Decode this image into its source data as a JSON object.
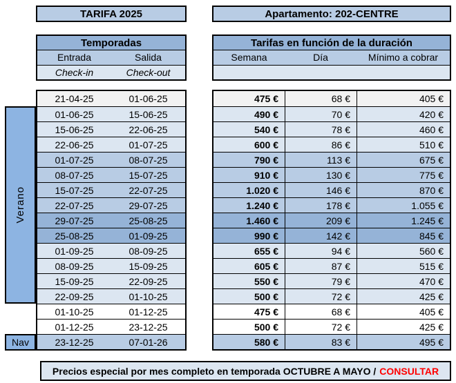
{
  "header": {
    "tarifa_title": "TARIFA 2025",
    "apartment_title": "Apartamento: 202-CENTRE"
  },
  "seasons": {
    "title": "Temporadas",
    "col_entrada": "Entrada",
    "col_salida": "Salida",
    "sub_checkin": "Check-in",
    "sub_checkout": "Check-out",
    "summer_label": "Verano",
    "christmas_label": "Nav"
  },
  "rates": {
    "title": "Tarifas en función de la duración",
    "col_semana": "Semana",
    "col_dia": "Día",
    "col_minimo": "Mínimo a cobrar"
  },
  "rows": [
    {
      "entrada": "21-04-25",
      "salida": "01-06-25",
      "semana": "475 €",
      "dia": "68 €",
      "minimo": "405 €",
      "shade": "gray"
    },
    {
      "entrada": "01-06-25",
      "salida": "15-06-25",
      "semana": "490 €",
      "dia": "70 €",
      "minimo": "420 €",
      "shade": "light"
    },
    {
      "entrada": "15-06-25",
      "salida": "22-06-25",
      "semana": "540 €",
      "dia": "78 €",
      "minimo": "460 €",
      "shade": "light"
    },
    {
      "entrada": "22-06-25",
      "salida": "01-07-25",
      "semana": "600 €",
      "dia": "86 €",
      "minimo": "510 €",
      "shade": "light"
    },
    {
      "entrada": "01-07-25",
      "salida": "08-07-25",
      "semana": "790 €",
      "dia": "113 €",
      "minimo": "675 €",
      "shade": "medium"
    },
    {
      "entrada": "08-07-25",
      "salida": "15-07-25",
      "semana": "910 €",
      "dia": "130 €",
      "minimo": "775 €",
      "shade": "medium"
    },
    {
      "entrada": "15-07-25",
      "salida": "22-07-25",
      "semana": "1.020 €",
      "dia": "146 €",
      "minimo": "870 €",
      "shade": "medium"
    },
    {
      "entrada": "22-07-25",
      "salida": "29-07-25",
      "semana": "1.240 €",
      "dia": "178 €",
      "minimo": "1.055 €",
      "shade": "medium"
    },
    {
      "entrada": "29-07-25",
      "salida": "25-08-25",
      "semana": "1.460 €",
      "dia": "209 €",
      "minimo": "1.245 €",
      "shade": "dark"
    },
    {
      "entrada": "25-08-25",
      "salida": "01-09-25",
      "semana": "990 €",
      "dia": "142 €",
      "minimo": "845 €",
      "shade": "dark"
    },
    {
      "entrada": "01-09-25",
      "salida": "08-09-25",
      "semana": "655 €",
      "dia": "94 €",
      "minimo": "560 €",
      "shade": "light"
    },
    {
      "entrada": "08-09-25",
      "salida": "15-09-25",
      "semana": "605 €",
      "dia": "87 €",
      "minimo": "515 €",
      "shade": "light"
    },
    {
      "entrada": "15-09-25",
      "salida": "22-09-25",
      "semana": "550 €",
      "dia": "79 €",
      "minimo": "470 €",
      "shade": "light"
    },
    {
      "entrada": "22-09-25",
      "salida": "01-10-25",
      "semana": "500 €",
      "dia": "72 €",
      "minimo": "425 €",
      "shade": "light"
    },
    {
      "entrada": "01-10-25",
      "salida": "01-12-25",
      "semana": "475 €",
      "dia": "68 €",
      "minimo": "405 €",
      "shade": "white"
    },
    {
      "entrada": "01-12-25",
      "salida": "23-12-25",
      "semana": "500 €",
      "dia": "72 €",
      "minimo": "425 €",
      "shade": "white"
    },
    {
      "entrada": "23-12-25",
      "salida": "07-01-26",
      "semana": "580 €",
      "dia": "83 €",
      "minimo": "495 €",
      "shade": "nav"
    }
  ],
  "footer": {
    "text_before": "Precios especial por mes completo en temporada OCTUBRE A MAYO /",
    "cta": "CONSULTAR"
  },
  "colors": {
    "accent_dark": "#95B3D7",
    "accent_mid": "#B8CCE4",
    "accent_light": "#DCE6F1",
    "accent_label": "#8DB4E2",
    "row_gray": "#F2F2F2",
    "highlight_red": "#FF0000"
  }
}
